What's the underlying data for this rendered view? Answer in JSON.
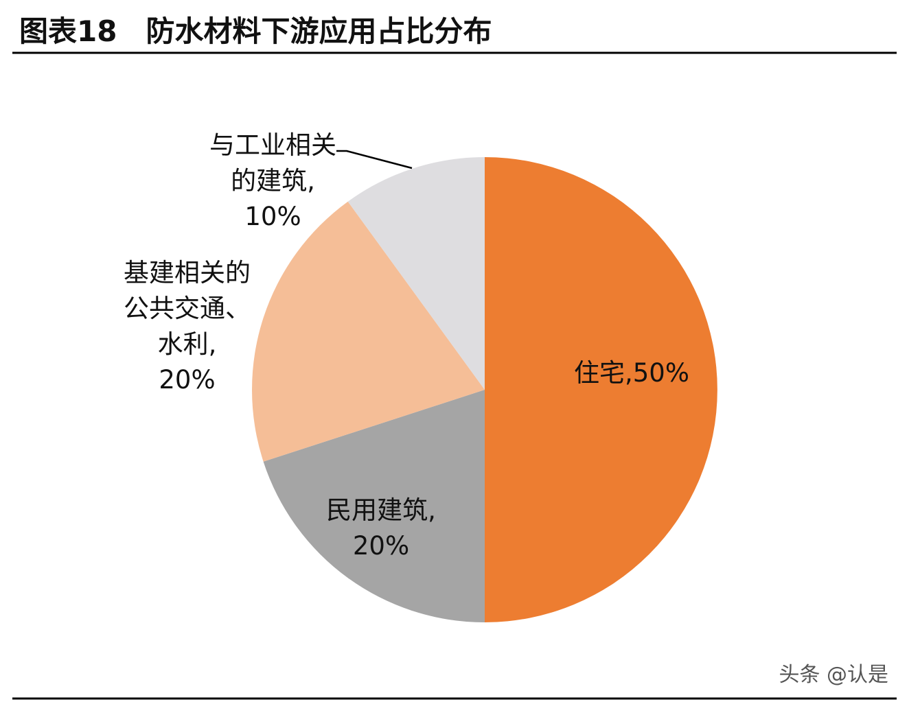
{
  "chart_data": {
    "type": "pie",
    "title": "图表18　防水材料下游应用占比分布",
    "categories": [
      "住宅,",
      "民用建筑,",
      "基建相关的公共交通、水利,",
      "与工业相关的建筑,"
    ],
    "values": [
      50,
      20,
      20,
      10
    ],
    "value_labels": [
      "50%",
      "20%",
      "20%",
      "10%"
    ],
    "colors": [
      "#ED7D31",
      "#A5A5A5",
      "#F5BE97",
      "#DEDDE0"
    ],
    "watermark": "头条 @认是"
  }
}
